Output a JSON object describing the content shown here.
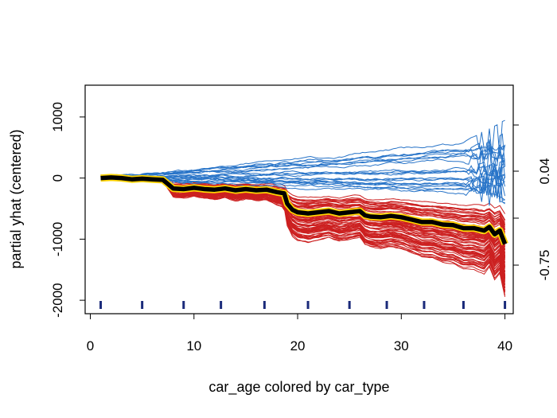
{
  "chart_data": {
    "type": "line",
    "subtype": "individual conditional expectation (ICE) plot",
    "xlabel": "car_age colored by car_type",
    "ylabel": "partial yhat (centered)",
    "right_axis_ticks": [
      "-0.75",
      "0.04"
    ],
    "x_ticks": [
      0,
      10,
      20,
      30,
      40
    ],
    "y_ticks": [
      -2000,
      -1000,
      0,
      1000
    ],
    "y_tick_labels": [
      "-2000",
      "-1000",
      "0",
      "1000"
    ],
    "xlim": [
      -0.5,
      40.8
    ],
    "ylim": [
      -2220,
      1520
    ],
    "grid": false,
    "legend": "none",
    "rug_positions": [
      1,
      5,
      9,
      12.6,
      16.8,
      21,
      25,
      28.6,
      32.2,
      36,
      40
    ],
    "colors": {
      "red_group": "#cc2020",
      "blue_group": "#2874c8",
      "pdp_line": "#000000",
      "pdp_outline": "#ffd400",
      "rug": "#1a2a7a"
    },
    "pdp_line": {
      "x": [
        1,
        2,
        3,
        4,
        5,
        6,
        7,
        7.5,
        8,
        9,
        10,
        11,
        12,
        13,
        14,
        15,
        16,
        17,
        18,
        18.7,
        19,
        19.5,
        20,
        21,
        22,
        23,
        24,
        25,
        26,
        26.5,
        27,
        28,
        29,
        30,
        31,
        32,
        33,
        34,
        35,
        36,
        37,
        38,
        38.5,
        39,
        39.5,
        40
      ],
      "y": [
        0,
        10,
        0,
        -20,
        -10,
        -20,
        -30,
        -100,
        -170,
        -180,
        -160,
        -180,
        -190,
        -170,
        -200,
        -180,
        -200,
        -190,
        -230,
        -250,
        -420,
        -520,
        -560,
        -580,
        -560,
        -540,
        -580,
        -560,
        -540,
        -610,
        -630,
        -640,
        -620,
        -640,
        -680,
        -720,
        -720,
        -760,
        -770,
        -820,
        -820,
        -860,
        -800,
        -920,
        -860,
        -1080
      ]
    },
    "series_groups": [
      {
        "color": "#2874c8",
        "count": 22
      },
      {
        "color": "#cc2020",
        "count": 80
      }
    ]
  }
}
